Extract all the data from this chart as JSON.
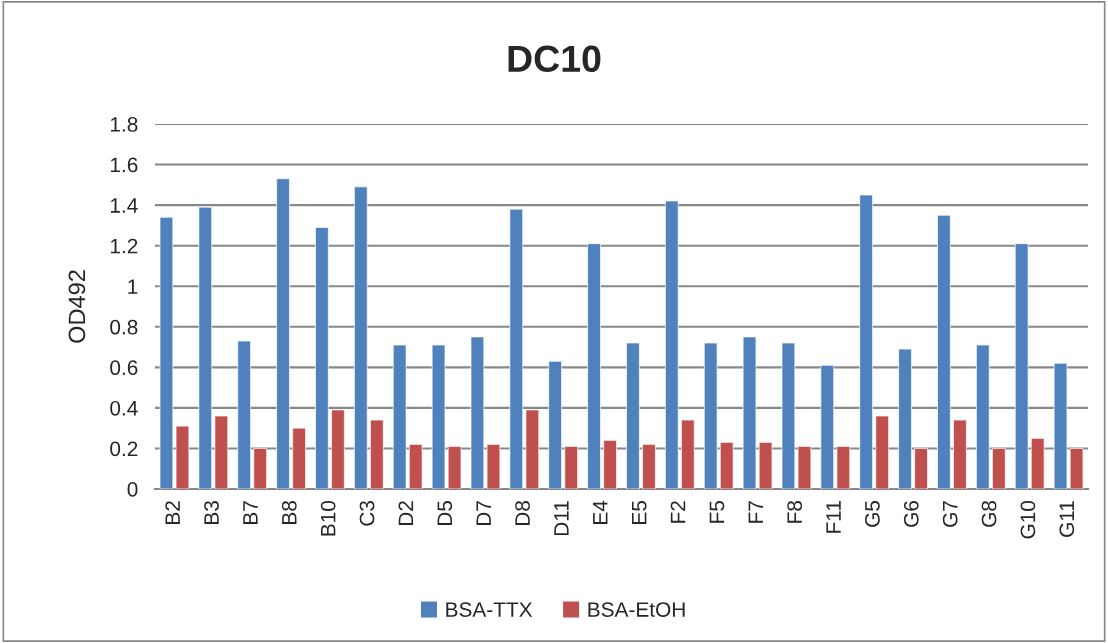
{
  "chart_data": {
    "type": "bar",
    "title": "DC10",
    "ylabel": "OD492",
    "categories": [
      "B2",
      "B3",
      "B7",
      "B8",
      "B10",
      "C3",
      "D2",
      "D5",
      "D7",
      "D8",
      "D11",
      "E4",
      "E5",
      "F2",
      "F5",
      "F7",
      "F8",
      "F11",
      "G5",
      "G6",
      "G7",
      "G8",
      "G10",
      "G11"
    ],
    "series": [
      {
        "name": "BSA-TTX",
        "color": "#4f81bd",
        "values": [
          1.34,
          1.39,
          0.73,
          1.53,
          1.29,
          1.49,
          0.71,
          0.71,
          0.75,
          1.38,
          0.63,
          1.21,
          0.72,
          1.42,
          0.72,
          0.75,
          0.72,
          0.61,
          1.45,
          0.69,
          1.35,
          0.71,
          1.21,
          0.62
        ]
      },
      {
        "name": "BSA-EtOH",
        "color": "#c0504d",
        "values": [
          0.31,
          0.36,
          0.2,
          0.3,
          0.39,
          0.34,
          0.22,
          0.21,
          0.22,
          0.39,
          0.21,
          0.24,
          0.22,
          0.34,
          0.23,
          0.23,
          0.21,
          0.21,
          0.36,
          0.2,
          0.34,
          0.2,
          0.25,
          0.2
        ]
      }
    ],
    "ylim": [
      0,
      1.8
    ],
    "yticks": [
      0,
      0.2,
      0.4,
      0.6,
      0.8,
      1,
      1.2,
      1.4,
      1.6,
      1.8
    ],
    "grid": "y",
    "legend": "bottom"
  }
}
